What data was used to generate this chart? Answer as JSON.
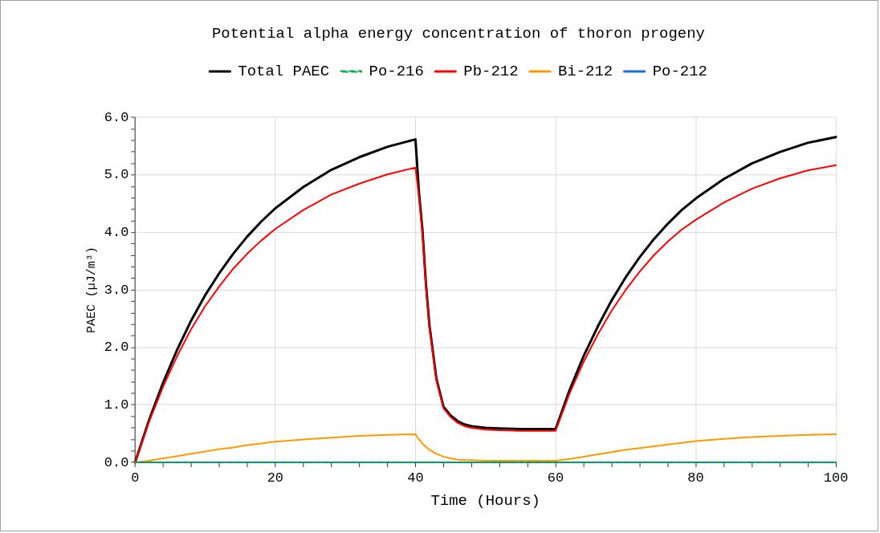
{
  "chart_data": {
    "type": "line",
    "title": "Potential alpha energy concentration of thoron progeny",
    "xlabel": "Time (Hours)",
    "ylabel": "PAEC (µJ/m³)",
    "x": [
      0,
      2,
      4,
      6,
      8,
      10,
      12,
      14,
      16,
      18,
      20,
      24,
      28,
      32,
      36,
      40,
      40.5,
      41,
      41.5,
      42,
      43,
      44,
      45,
      46,
      47,
      48,
      50,
      52,
      55,
      60,
      62,
      64,
      66,
      68,
      70,
      72,
      74,
      76,
      78,
      80,
      84,
      88,
      92,
      96,
      100
    ],
    "series": [
      {
        "name": "Total PAEC",
        "color": "#000000",
        "values": [
          0,
          0.74,
          1.39,
          1.96,
          2.47,
          2.91,
          3.29,
          3.63,
          3.93,
          4.19,
          4.42,
          4.79,
          5.09,
          5.31,
          5.49,
          5.62,
          4.7,
          4.04,
          3.1,
          2.38,
          1.45,
          0.97,
          0.82,
          0.72,
          0.66,
          0.63,
          0.6,
          0.59,
          0.58,
          0.58,
          1.26,
          1.85,
          2.36,
          2.82,
          3.22,
          3.57,
          3.88,
          4.15,
          4.39,
          4.59,
          4.93,
          5.2,
          5.4,
          5.56,
          5.66
        ]
      },
      {
        "name": "Po-216",
        "color": "#00aa44",
        "line_style": "dashed",
        "values": [
          0,
          0,
          0,
          0,
          0,
          0,
          0,
          0,
          0,
          0,
          0,
          0,
          0,
          0,
          0,
          0,
          0,
          0,
          0,
          0,
          0,
          0,
          0,
          0,
          0,
          0,
          0,
          0,
          0,
          0,
          0,
          0,
          0,
          0,
          0,
          0,
          0,
          0,
          0,
          0,
          0,
          0,
          0,
          0,
          0
        ]
      },
      {
        "name": "Pb-212",
        "color": "#ff0000",
        "values": [
          0,
          0.71,
          1.32,
          1.85,
          2.32,
          2.72,
          3.06,
          3.37,
          3.63,
          3.86,
          4.06,
          4.39,
          4.66,
          4.85,
          5.01,
          5.13,
          4.62,
          3.98,
          3.05,
          2.33,
          1.42,
          0.94,
          0.79,
          0.69,
          0.63,
          0.6,
          0.57,
          0.56,
          0.55,
          0.55,
          1.2,
          1.75,
          2.22,
          2.64,
          3.0,
          3.32,
          3.6,
          3.84,
          4.05,
          4.22,
          4.52,
          4.76,
          4.94,
          5.08,
          5.17
        ]
      },
      {
        "name": "Bi-212",
        "color": "#ff9900",
        "values": [
          0,
          0.03,
          0.07,
          0.11,
          0.15,
          0.19,
          0.23,
          0.26,
          0.3,
          0.33,
          0.36,
          0.4,
          0.43,
          0.46,
          0.48,
          0.49,
          0.4,
          0.33,
          0.27,
          0.22,
          0.15,
          0.1,
          0.07,
          0.05,
          0.04,
          0.04,
          0.03,
          0.03,
          0.03,
          0.03,
          0.06,
          0.1,
          0.14,
          0.18,
          0.22,
          0.25,
          0.28,
          0.31,
          0.34,
          0.37,
          0.41,
          0.44,
          0.46,
          0.48,
          0.49
        ]
      },
      {
        "name": "Po-212",
        "color": "#1a6fdf",
        "values": [
          0,
          0,
          0,
          0,
          0,
          0,
          0,
          0,
          0,
          0,
          0,
          0,
          0,
          0,
          0,
          0,
          0,
          0,
          0,
          0,
          0,
          0,
          0,
          0,
          0,
          0,
          0,
          0,
          0,
          0,
          0,
          0,
          0,
          0,
          0,
          0,
          0,
          0,
          0,
          0,
          0,
          0,
          0,
          0,
          0
        ]
      }
    ],
    "xlim": [
      0,
      100
    ],
    "xticks": [
      0,
      {
        "value": 4,
        "label": null
      },
      {
        "value": 8,
        "label": null
      },
      {
        "value": 12,
        "label": null
      },
      {
        "value": 16,
        "label": null
      },
      20,
      {
        "value": 24,
        "label": null
      },
      {
        "value": 28,
        "label": null
      },
      {
        "value": 32,
        "label": null
      },
      {
        "value": 36,
        "label": null
      },
      40,
      {
        "value": 44,
        "label": null
      },
      {
        "value": 48,
        "label": null
      },
      {
        "value": 52,
        "label": null
      },
      {
        "value": 56,
        "label": null
      },
      60,
      {
        "value": 64,
        "label": null
      },
      {
        "value": 68,
        "label": null
      },
      {
        "value": 72,
        "label": null
      },
      {
        "value": 76,
        "label": null
      },
      80,
      {
        "value": 84,
        "label": null
      },
      {
        "value": 88,
        "label": null
      },
      {
        "value": 92,
        "label": null
      },
      {
        "value": 96,
        "label": null
      },
      100
    ],
    "ylim": [
      0,
      6
    ],
    "yticks": [
      {
        "value": 0,
        "label": "0.0"
      },
      {
        "value": 0.2,
        "label": null
      },
      {
        "value": 0.4,
        "label": null
      },
      {
        "value": 0.6,
        "label": null
      },
      {
        "value": 0.8,
        "label": null
      },
      {
        "value": 1,
        "label": "1.0"
      },
      {
        "value": 1.2,
        "label": null
      },
      {
        "value": 1.4,
        "label": null
      },
      {
        "value": 1.6,
        "label": null
      },
      {
        "value": 1.8,
        "label": null
      },
      {
        "value": 2,
        "label": "2.0"
      },
      {
        "value": 2.2,
        "label": null
      },
      {
        "value": 2.4,
        "label": null
      },
      {
        "value": 2.6,
        "label": null
      },
      {
        "value": 2.8,
        "label": null
      },
      {
        "value": 3,
        "label": "3.0"
      },
      {
        "value": 3.2,
        "label": null
      },
      {
        "value": 3.4,
        "label": null
      },
      {
        "value": 3.6,
        "label": null
      },
      {
        "value": 3.8,
        "label": null
      },
      {
        "value": 4,
        "label": "4.0"
      },
      {
        "value": 4.2,
        "label": null
      },
      {
        "value": 4.4,
        "label": null
      },
      {
        "value": 4.6,
        "label": null
      },
      {
        "value": 4.8,
        "label": null
      },
      {
        "value": 5,
        "label": "5.0"
      },
      {
        "value": 5.2,
        "label": null
      },
      {
        "value": 5.4,
        "label": null
      },
      {
        "value": 5.6,
        "label": null
      },
      {
        "value": 5.8,
        "label": null
      },
      {
        "value": 6,
        "label": "6.0"
      }
    ],
    "grid": true,
    "legend": "top",
    "marker": "none"
  }
}
